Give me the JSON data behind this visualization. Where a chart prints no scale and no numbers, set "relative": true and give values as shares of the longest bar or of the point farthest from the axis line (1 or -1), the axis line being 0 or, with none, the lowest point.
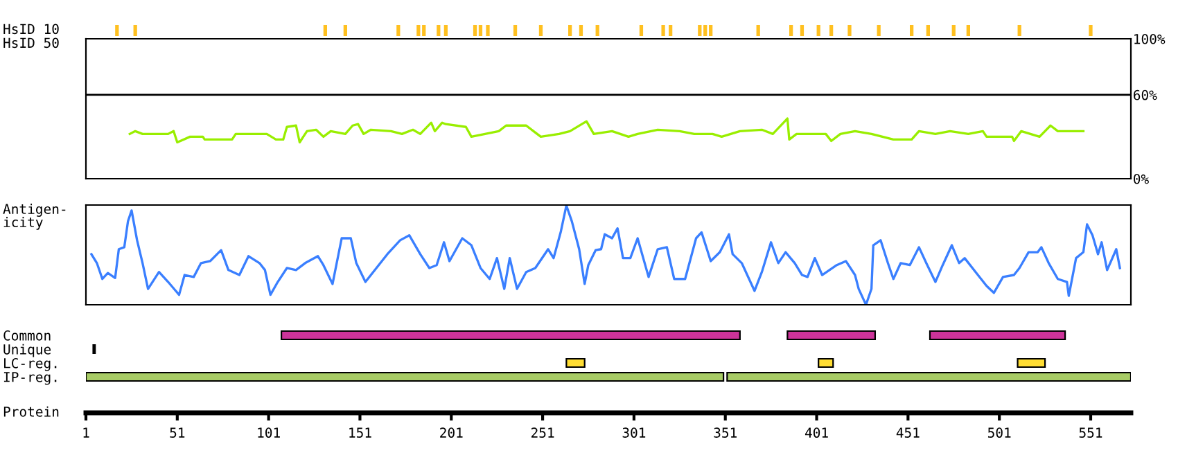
{
  "chart_data": [
    {
      "type": "bar",
      "ylabel": "HsID 10",
      "relative": true,
      "xlim": [
        1,
        573
      ],
      "tick_labels": false,
      "color": "#ffc020",
      "x": [
        18,
        28,
        132,
        143,
        172,
        183,
        186,
        194,
        198,
        214,
        217,
        221,
        236,
        250,
        266,
        272,
        281,
        305,
        317,
        321,
        337,
        340,
        343,
        369,
        387,
        393,
        402,
        409,
        419,
        435,
        453,
        462,
        476,
        484,
        512,
        551
      ],
      "values": [
        1,
        1,
        1,
        1,
        1,
        1,
        1,
        1,
        1,
        1,
        1,
        1,
        1,
        1,
        1,
        1,
        1,
        1,
        1,
        1,
        1,
        1,
        1,
        1,
        1,
        1,
        1,
        1,
        1,
        1,
        1,
        1,
        1,
        1,
        1,
        1
      ]
    },
    {
      "type": "line",
      "ylabel": "HsID 50",
      "xlim": [
        1,
        573
      ],
      "ylim": [
        0,
        100
      ],
      "tick_labels": "y",
      "yticks": [
        {
          "value": 0,
          "label": "0%"
        },
        {
          "value": 60,
          "label": "60%"
        },
        {
          "value": 100,
          "label": "100%"
        }
      ],
      "ref_lines": [
        {
          "axis": "y",
          "value": 60,
          "color": "#000000"
        }
      ],
      "series": [
        {
          "color": "#99ee00",
          "x": [
            25,
            28,
            32,
            46,
            49,
            51,
            58,
            65,
            66,
            81,
            83,
            100,
            105,
            109,
            111,
            116,
            118,
            120,
            122,
            127,
            131,
            135,
            143,
            147,
            150,
            153,
            157,
            168,
            174,
            180,
            184,
            190,
            192,
            196,
            198,
            209,
            212,
            227,
            231,
            242,
            246,
            250,
            260,
            266,
            275,
            279,
            289,
            298,
            303,
            314,
            326,
            334,
            344,
            349,
            359,
            371,
            377,
            385,
            386,
            390,
            406,
            409,
            414,
            422,
            431,
            443,
            453,
            457,
            466,
            474,
            484,
            492,
            494,
            508,
            509,
            513,
            523,
            529,
            533,
            547
          ],
          "values": [
            32,
            34,
            32,
            32,
            34,
            26,
            30,
            30,
            28,
            28,
            32,
            32,
            28,
            28,
            37,
            38,
            26,
            30,
            34,
            35,
            30,
            34,
            32,
            38,
            39,
            32,
            35,
            34,
            32,
            35,
            32,
            40,
            34,
            40,
            39,
            37,
            30,
            34,
            38,
            38,
            34,
            30,
            32,
            34,
            41,
            32,
            34,
            30,
            32,
            35,
            34,
            32,
            32,
            30,
            34,
            35,
            32,
            43,
            28,
            32,
            32,
            27,
            32,
            34,
            32,
            28,
            28,
            34,
            32,
            34,
            32,
            34,
            30,
            30,
            27,
            34,
            30,
            38,
            34,
            34
          ]
        }
      ]
    },
    {
      "type": "line",
      "ylabel": "Antigen-\nicity",
      "relative": true,
      "xlim": [
        1,
        573
      ],
      "tick_labels": false,
      "series": [
        {
          "color": "#3a7fff",
          "x": [
            4,
            7,
            10,
            13,
            17,
            19,
            22,
            24,
            26,
            29,
            32,
            35,
            41,
            46,
            52,
            55,
            60,
            64,
            69,
            75,
            79,
            85,
            90,
            96,
            99,
            102,
            106,
            111,
            116,
            121,
            128,
            131,
            136,
            141,
            146,
            149,
            154,
            160,
            166,
            173,
            178,
            184,
            189,
            193,
            197,
            200,
            207,
            212,
            217,
            222,
            226,
            230,
            233,
            237,
            242,
            247,
            254,
            257,
            261,
            264,
            267,
            271,
            274,
            276,
            280,
            283,
            285,
            289,
            292,
            295,
            299,
            303,
            309,
            314,
            319,
            323,
            329,
            335,
            338,
            343,
            348,
            353,
            355,
            360,
            367,
            371,
            376,
            380,
            384,
            389,
            393,
            396,
            400,
            404,
            412,
            417,
            422,
            424,
            428,
            431,
            432,
            436,
            440,
            443,
            447,
            452,
            457,
            461,
            466,
            470,
            475,
            479,
            482,
            488,
            494,
            498,
            503,
            509,
            512,
            517,
            522,
            524,
            528,
            533,
            538,
            539,
            543,
            547,
            549,
            552,
            555,
            557,
            560,
            565,
            567
          ],
          "values": [
            0.51,
            0.42,
            0.26,
            0.32,
            0.27,
            0.56,
            0.58,
            0.84,
            0.95,
            0.65,
            0.42,
            0.16,
            0.33,
            0.23,
            0.1,
            0.3,
            0.28,
            0.42,
            0.44,
            0.55,
            0.35,
            0.3,
            0.49,
            0.42,
            0.35,
            0.1,
            0.23,
            0.37,
            0.35,
            0.42,
            0.49,
            0.4,
            0.21,
            0.67,
            0.67,
            0.42,
            0.23,
            0.37,
            0.51,
            0.65,
            0.7,
            0.51,
            0.37,
            0.4,
            0.63,
            0.44,
            0.67,
            0.6,
            0.37,
            0.26,
            0.47,
            0.16,
            0.47,
            0.16,
            0.33,
            0.37,
            0.56,
            0.47,
            0.74,
            1.0,
            0.84,
            0.56,
            0.21,
            0.4,
            0.55,
            0.56,
            0.71,
            0.67,
            0.77,
            0.47,
            0.47,
            0.67,
            0.28,
            0.56,
            0.58,
            0.26,
            0.26,
            0.67,
            0.73,
            0.44,
            0.53,
            0.71,
            0.51,
            0.42,
            0.14,
            0.33,
            0.63,
            0.42,
            0.53,
            0.42,
            0.3,
            0.28,
            0.47,
            0.3,
            0.4,
            0.44,
            0.3,
            0.16,
            0.0,
            0.16,
            0.6,
            0.65,
            0.42,
            0.26,
            0.42,
            0.4,
            0.58,
            0.42,
            0.23,
            0.4,
            0.6,
            0.42,
            0.47,
            0.33,
            0.19,
            0.12,
            0.28,
            0.3,
            0.37,
            0.53,
            0.53,
            0.58,
            0.42,
            0.26,
            0.23,
            0.09,
            0.47,
            0.53,
            0.81,
            0.7,
            0.51,
            0.63,
            0.35,
            0.56,
            0.37
          ]
        }
      ]
    },
    {
      "type": "bar",
      "orientation": "horizontal",
      "xlabel": "Protein",
      "xlim": [
        1,
        573
      ],
      "tick_labels": "x",
      "xticks": [
        1,
        51,
        101,
        151,
        201,
        251,
        301,
        351,
        401,
        451,
        501,
        551
      ],
      "categories": [
        "Common",
        "Unique",
        "LC-reg.",
        "IP-reg."
      ],
      "series": [
        {
          "color": "#cc3399",
          "base": [
            108,
            null,
            null,
            null
          ],
          "values": [
            251,
            null,
            null,
            null
          ]
        },
        {
          "color": "#cc3399",
          "base": [
            385,
            null,
            null,
            null
          ],
          "values": [
            48,
            null,
            null,
            null
          ]
        },
        {
          "color": "#cc3399",
          "base": [
            463,
            null,
            null,
            null
          ],
          "values": [
            74,
            null,
            null,
            null
          ]
        },
        {
          "color": "#000000",
          "base": [
            null,
            5,
            null,
            null
          ],
          "values": [
            null,
            1,
            null,
            null
          ]
        },
        {
          "color": "#ffdd33",
          "base": [
            null,
            null,
            264,
            null
          ],
          "values": [
            null,
            null,
            10,
            null
          ]
        },
        {
          "color": "#ffdd33",
          "base": [
            null,
            null,
            402,
            null
          ],
          "values": [
            null,
            null,
            8,
            null
          ]
        },
        {
          "color": "#ffdd33",
          "base": [
            null,
            null,
            511,
            null
          ],
          "values": [
            null,
            null,
            15,
            null
          ]
        },
        {
          "color": "#a8cc66",
          "base": [
            null,
            null,
            null,
            1
          ],
          "values": [
            null,
            null,
            null,
            349
          ]
        },
        {
          "color": "#a8cc66",
          "base": [
            null,
            null,
            null,
            352
          ],
          "values": [
            null,
            null,
            null,
            221
          ]
        }
      ]
    }
  ]
}
